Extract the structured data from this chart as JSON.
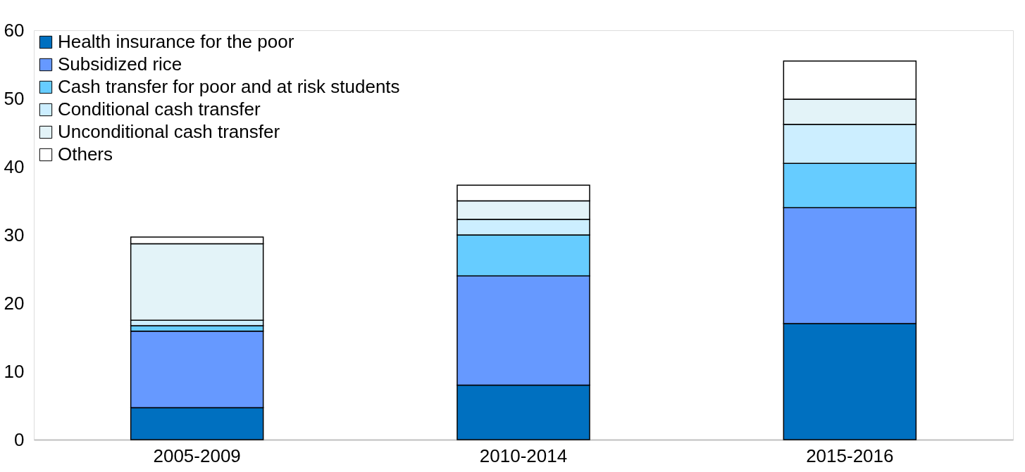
{
  "chart_data": {
    "type": "bar",
    "stacked": true,
    "categories": [
      "2005-2009",
      "2010-2014",
      "2015-2016"
    ],
    "series": [
      {
        "name": "Health insurance for the poor",
        "color": "#0070c0",
        "values": [
          4.7,
          8.0,
          17.0
        ]
      },
      {
        "name": "Subsidized rice",
        "color": "#6699ff",
        "values": [
          11.2,
          16.0,
          17.0
        ]
      },
      {
        "name": "Cash transfer for poor and at risk students",
        "color": "#66ccff",
        "values": [
          0.8,
          6.0,
          6.5
        ]
      },
      {
        "name": "Conditional cash transfer",
        "color": "#cceeff",
        "values": [
          0.8,
          2.3,
          5.7
        ]
      },
      {
        "name": "Unconditional cash transfer",
        "color": "#e3f3f8",
        "values": [
          11.2,
          2.7,
          3.7
        ]
      },
      {
        "name": "Others",
        "color": "#ffffff",
        "values": [
          1.0,
          2.3,
          5.6
        ]
      }
    ],
    "ylim": [
      0,
      60
    ],
    "yticks": [
      0,
      10,
      20,
      30,
      40,
      50,
      60
    ],
    "grid": false,
    "legend": "top left"
  }
}
